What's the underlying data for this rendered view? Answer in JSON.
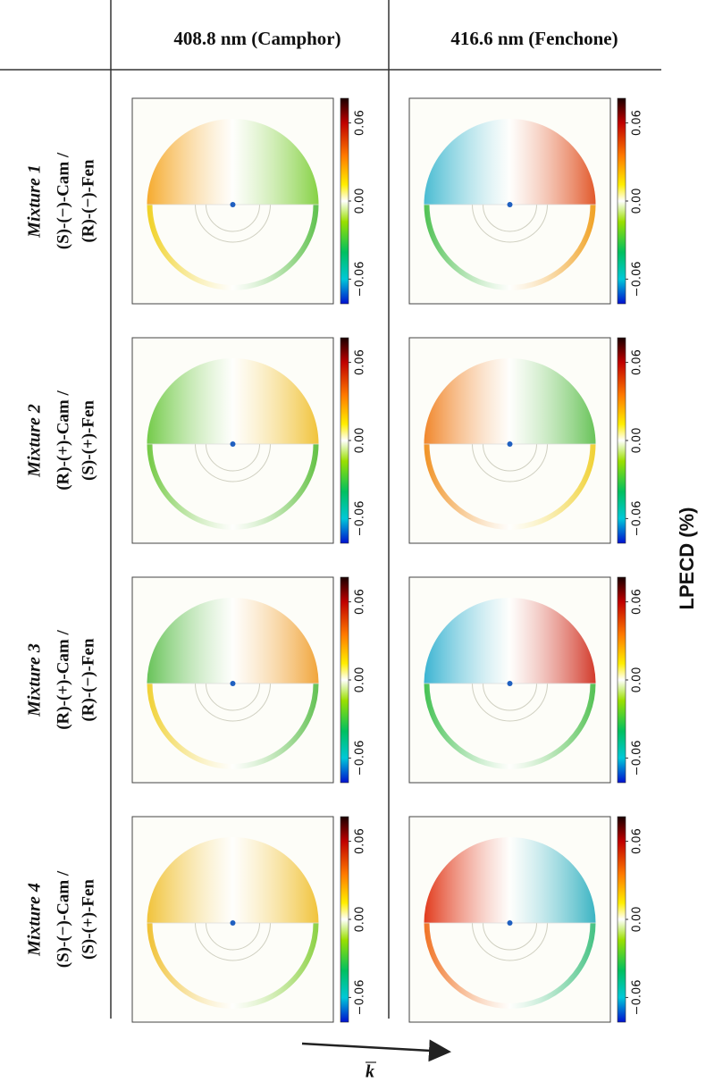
{
  "header": {
    "columns": [
      "408.8 nm (Camphor)",
      "416.6 nm (Fenchone)"
    ]
  },
  "rows": [
    {
      "mixture": "Mixture 1",
      "line1": "(S)-(−)-Cam /",
      "line2": "(R)-(−)-Fen"
    },
    {
      "mixture": "Mixture 2",
      "line1": "(R)-(+)-Cam /",
      "line2": "(S)-(+)-Fen"
    },
    {
      "mixture": "Mixture 3",
      "line1": "(R)-(+)-Cam /",
      "line2": "(R)-(−)-Fen"
    },
    {
      "mixture": "Mixture 4",
      "line1": "(S)-(−)-Cam /",
      "line2": "(S)-(+)-Fen"
    }
  ],
  "colorbar": {
    "ticks": [
      "0.06",
      "0.00",
      "−0.06"
    ]
  },
  "axis_label": "LPECD (%)",
  "arrow_label": "k"
}
